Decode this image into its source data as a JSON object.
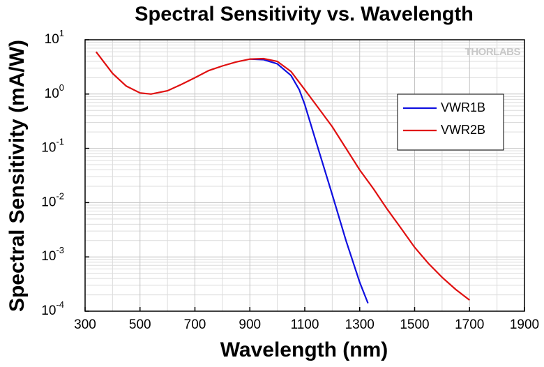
{
  "chart_data": {
    "type": "line",
    "title": "Spectral Sensitivity vs. Wavelength",
    "xlabel": "Wavelength (nm)",
    "ylabel": "Spectral Sensitivity (mA/W)",
    "watermark": "THORLABS",
    "xlim": [
      300,
      1900
    ],
    "xticks": [
      300,
      500,
      700,
      900,
      1100,
      1300,
      1500,
      1700,
      1900
    ],
    "ylim": [
      0.0001,
      10
    ],
    "log_y": true,
    "grid": true,
    "legend": "upper right",
    "yticks": [
      {
        "value": 0.0001,
        "label": "10",
        "exponent": "-4"
      },
      {
        "value": 0.001,
        "label": "10",
        "exponent": "-3"
      },
      {
        "value": 0.01,
        "label": "10",
        "exponent": "-2"
      },
      {
        "value": 0.1,
        "label": "10",
        "exponent": "-1"
      },
      {
        "value": 1,
        "label": "10",
        "exponent": "0"
      },
      {
        "value": 10,
        "label": "10",
        "exponent": "1"
      }
    ],
    "series": [
      {
        "name": "VWR1B",
        "color": "#1010e0",
        "x": [
          900,
          950,
          1000,
          1050,
          1080,
          1100,
          1150,
          1200,
          1250,
          1300,
          1330
        ],
        "values": [
          4.4,
          4.3,
          3.6,
          2.2,
          1.2,
          0.64,
          0.094,
          0.014,
          0.002,
          0.00034,
          0.00014
        ]
      },
      {
        "name": "VWR2B",
        "color": "#e01010",
        "x": [
          340,
          400,
          450,
          500,
          540,
          600,
          650,
          700,
          750,
          800,
          850,
          900,
          950,
          1000,
          1050,
          1100,
          1150,
          1200,
          1250,
          1300,
          1350,
          1400,
          1450,
          1500,
          1550,
          1600,
          1650,
          1700
        ],
        "values": [
          6,
          2.4,
          1.4,
          1.05,
          1.0,
          1.15,
          1.5,
          2.0,
          2.7,
          3.3,
          3.9,
          4.4,
          4.5,
          4.0,
          2.6,
          1.2,
          0.55,
          0.25,
          0.1,
          0.04,
          0.018,
          0.0076,
          0.0034,
          0.0015,
          0.00076,
          0.00042,
          0.00025,
          0.00016
        ]
      }
    ]
  }
}
